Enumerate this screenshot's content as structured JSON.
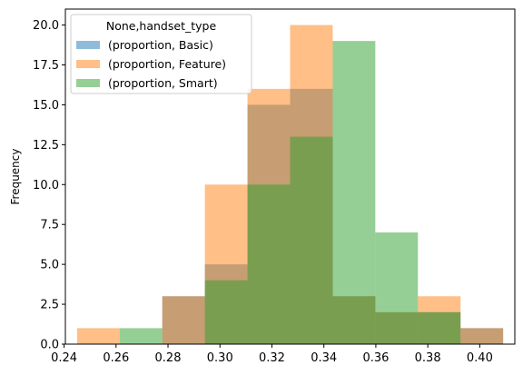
{
  "chart_data": {
    "type": "bar",
    "subtype": "histogram-overlay",
    "title": "",
    "xlabel": "",
    "ylabel": "Frequency",
    "xlim": [
      0.2405,
      0.4135
    ],
    "ylim": [
      0,
      21
    ],
    "xticks": [
      0.24,
      0.26,
      0.28,
      0.3,
      0.32,
      0.34,
      0.36,
      0.38,
      0.4
    ],
    "xtick_labels": [
      "0.24",
      "0.26",
      "0.28",
      "0.30",
      "0.32",
      "0.34",
      "0.36",
      "0.38",
      "0.40"
    ],
    "yticks": [
      0.0,
      2.5,
      5.0,
      7.5,
      10.0,
      12.5,
      15.0,
      17.5,
      20.0
    ],
    "ytick_labels": [
      "0.0",
      "2.5",
      "5.0",
      "7.5",
      "10.0",
      "12.5",
      "15.0",
      "17.5",
      "20.0"
    ],
    "bin_edges": [
      0.245,
      0.2614,
      0.2778,
      0.2942,
      0.3106,
      0.327,
      0.3434,
      0.3598,
      0.3762,
      0.3926,
      0.409
    ],
    "bar_alpha": 0.5,
    "legend": {
      "title": "None,handset_type",
      "position": "top-left"
    },
    "series": [
      {
        "name": "(proportion, Basic)",
        "color": "#1f77b4",
        "values": [
          0,
          0,
          3,
          5,
          15,
          16,
          3,
          2,
          2,
          1
        ]
      },
      {
        "name": "(proportion, Feature)",
        "color": "#ff7f0e",
        "values": [
          1,
          0,
          3,
          10,
          16,
          20,
          3,
          2,
          3,
          1
        ]
      },
      {
        "name": "(proportion, Smart)",
        "color": "#2ca02c",
        "values": [
          0,
          1,
          0,
          4,
          10,
          13,
          19,
          7,
          2,
          0
        ]
      }
    ]
  }
}
